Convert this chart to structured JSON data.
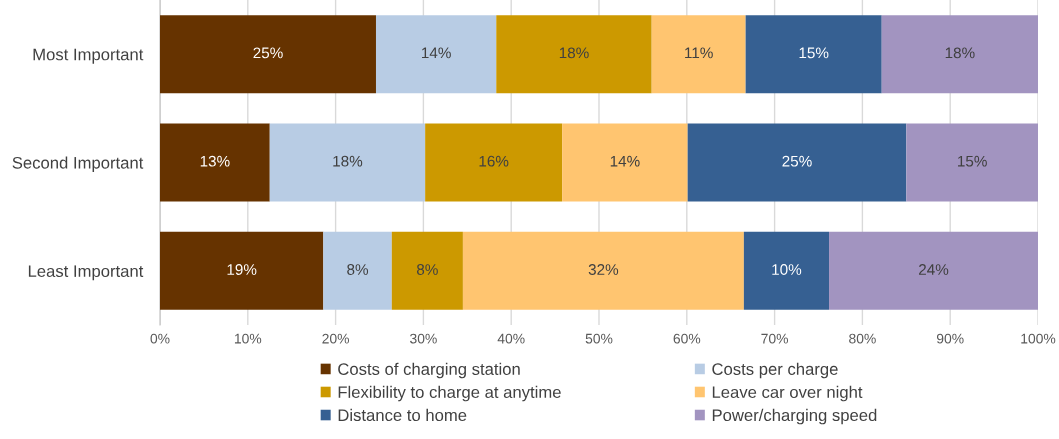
{
  "chart_data": {
    "type": "bar",
    "orientation": "horizontal",
    "stacked": true,
    "categories": [
      "Most Important",
      "Second Important",
      "Least Important"
    ],
    "series": [
      {
        "name": "Costs of charging station",
        "color": "#663300",
        "values": [
          24.6,
          12.5,
          18.6
        ],
        "value_labels": [
          "25%",
          "13%",
          "19%"
        ]
      },
      {
        "name": "Costs per charge",
        "color": "#b8cce4",
        "values": [
          13.7,
          17.7,
          7.8
        ],
        "value_labels": [
          "14%",
          "18%",
          "8%"
        ]
      },
      {
        "name": "Flexibility to charge at anytime",
        "color": "#cc9900",
        "values": [
          17.7,
          15.6,
          8.1
        ],
        "value_labels": [
          "18%",
          "16%",
          "8%"
        ]
      },
      {
        "name": "Leave car over night",
        "color": "#ffc570",
        "values": [
          10.7,
          14.3,
          32.0
        ],
        "value_labels": [
          "11%",
          "14%",
          "32%"
        ]
      },
      {
        "name": "Distance to home",
        "color": "#366092",
        "values": [
          15.5,
          24.9,
          9.7
        ],
        "value_labels": [
          "15%",
          "25%",
          "10%"
        ]
      },
      {
        "name": "Power/charging speed",
        "color": "#a294c0",
        "values": [
          17.8,
          15.0,
          23.8
        ],
        "value_labels": [
          "18%",
          "15%",
          "24%"
        ]
      }
    ],
    "xlim": [
      0,
      100
    ],
    "xticks": [
      {
        "value": 0,
        "label": "0%"
      },
      {
        "value": 10,
        "label": "10%"
      },
      {
        "value": 20,
        "label": "20%"
      },
      {
        "value": 30,
        "label": "30%"
      },
      {
        "value": 40,
        "label": "40%"
      },
      {
        "value": 50,
        "label": "50%"
      },
      {
        "value": 60,
        "label": "60%"
      },
      {
        "value": 70,
        "label": "70%"
      },
      {
        "value": 80,
        "label": "80%"
      },
      {
        "value": 90,
        "label": "90%"
      },
      {
        "value": 100,
        "label": "100%"
      }
    ],
    "grid": "x",
    "legend": "bottom"
  }
}
